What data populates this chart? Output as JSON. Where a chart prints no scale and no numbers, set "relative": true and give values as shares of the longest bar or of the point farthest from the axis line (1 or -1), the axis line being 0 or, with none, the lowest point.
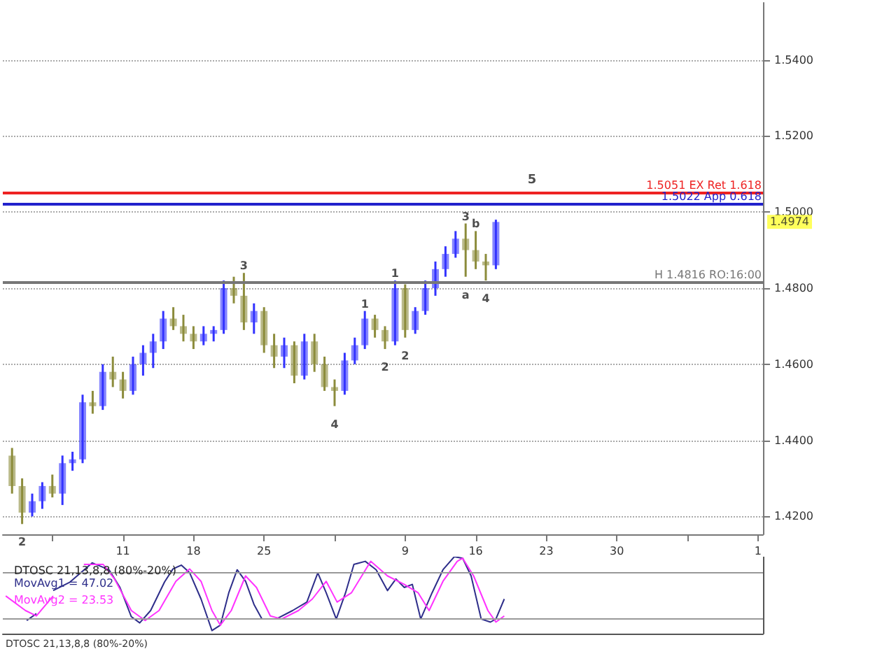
{
  "chart_data": [
    {
      "type": "candlestick",
      "x": [
        "--08-31",
        "--09-01",
        "--09-02",
        "--09-03",
        "--09-04",
        "--09-05",
        "--09-06",
        "--09-07",
        "--09-08",
        "--09-09",
        "--09-10",
        "--09-11",
        "--09-12",
        "--09-13",
        "--09-14",
        "--09-15",
        "--09-16",
        "--09-17",
        "--09-18",
        "--09-19",
        "--09-20",
        "--09-21",
        "--09-22",
        "--09-23",
        "--09-24",
        "--09-25",
        "--09-26",
        "--09-27",
        "--09-28",
        "--09-29",
        "--09-30",
        "--10-01",
        "--10-02",
        "--10-03",
        "--10-04",
        "--10-05",
        "--10-06",
        "--10-07",
        "--10-08",
        "--10-09",
        "--10-10",
        "--10-11",
        "--10-12",
        "--10-13",
        "--10-14",
        "--10-15",
        "--10-16",
        "--10-17",
        "--10-18"
      ],
      "ohlc": [
        [
          1.436,
          1.438,
          1.426,
          1.428
        ],
        [
          1.428,
          1.43,
          1.418,
          1.421
        ],
        [
          1.421,
          1.426,
          1.42,
          1.424
        ],
        [
          1.424,
          1.429,
          1.422,
          1.428
        ],
        [
          1.428,
          1.431,
          1.425,
          1.426
        ],
        [
          1.426,
          1.436,
          1.423,
          1.434
        ],
        [
          1.434,
          1.437,
          1.432,
          1.435
        ],
        [
          1.435,
          1.452,
          1.434,
          1.45
        ],
        [
          1.45,
          1.453,
          1.447,
          1.449
        ],
        [
          1.449,
          1.46,
          1.448,
          1.458
        ],
        [
          1.458,
          1.462,
          1.454,
          1.456
        ],
        [
          1.456,
          1.458,
          1.451,
          1.453
        ],
        [
          1.453,
          1.462,
          1.452,
          1.46
        ],
        [
          1.46,
          1.465,
          1.457,
          1.463
        ],
        [
          1.463,
          1.468,
          1.459,
          1.466
        ],
        [
          1.466,
          1.474,
          1.464,
          1.472
        ],
        [
          1.472,
          1.475,
          1.469,
          1.47
        ],
        [
          1.47,
          1.473,
          1.466,
          1.468
        ],
        [
          1.468,
          1.47,
          1.464,
          1.466
        ],
        [
          1.466,
          1.47,
          1.465,
          1.468
        ],
        [
          1.468,
          1.47,
          1.466,
          1.469
        ],
        [
          1.469,
          1.482,
          1.468,
          1.48
        ],
        [
          1.48,
          1.483,
          1.476,
          1.478
        ],
        [
          1.478,
          1.484,
          1.469,
          1.471
        ],
        [
          1.471,
          1.476,
          1.468,
          1.474
        ],
        [
          1.474,
          1.475,
          1.463,
          1.465
        ],
        [
          1.465,
          1.468,
          1.459,
          1.462
        ],
        [
          1.462,
          1.467,
          1.459,
          1.465
        ],
        [
          1.465,
          1.466,
          1.455,
          1.457
        ],
        [
          1.457,
          1.468,
          1.456,
          1.466
        ],
        [
          1.466,
          1.468,
          1.458,
          1.46
        ],
        [
          1.46,
          1.462,
          1.453,
          1.454
        ],
        [
          1.454,
          1.456,
          1.449,
          1.453
        ],
        [
          1.453,
          1.463,
          1.452,
          1.461
        ],
        [
          1.461,
          1.467,
          1.46,
          1.465
        ],
        [
          1.465,
          1.474,
          1.464,
          1.472
        ],
        [
          1.472,
          1.473,
          1.467,
          1.469
        ],
        [
          1.469,
          1.47,
          1.464,
          1.466
        ],
        [
          1.466,
          1.482,
          1.465,
          1.48
        ],
        [
          1.48,
          1.481,
          1.467,
          1.469
        ],
        [
          1.469,
          1.475,
          1.468,
          1.474
        ],
        [
          1.474,
          1.482,
          1.473,
          1.48
        ],
        [
          1.48,
          1.487,
          1.478,
          1.485
        ],
        [
          1.485,
          1.491,
          1.483,
          1.489
        ],
        [
          1.489,
          1.495,
          1.488,
          1.493
        ],
        [
          1.493,
          1.497,
          1.483,
          1.49
        ],
        [
          1.49,
          1.495,
          1.485,
          1.487
        ],
        [
          1.487,
          1.489,
          1.482,
          1.486
        ],
        [
          1.486,
          1.498,
          1.485,
          1.4974
        ]
      ],
      "colors": [
        "#8c8c3c",
        "#8c8c3c",
        "#3333ff",
        "#3333ff",
        "#8c8c3c",
        "#3333ff",
        "#3333ff",
        "#3333ff",
        "#8c8c3c",
        "#3333ff",
        "#8c8c3c",
        "#8c8c3c",
        "#3333ff",
        "#3333ff",
        "#3333ff",
        "#3333ff",
        "#8c8c3c",
        "#8c8c3c",
        "#8c8c3c",
        "#3333ff",
        "#3333ff",
        "#3333ff",
        "#8c8c3c",
        "#8c8c3c",
        "#3333ff",
        "#8c8c3c",
        "#8c8c3c",
        "#3333ff",
        "#8c8c3c",
        "#3333ff",
        "#8c8c3c",
        "#8c8c3c",
        "#8c8c3c",
        "#3333ff",
        "#3333ff",
        "#3333ff",
        "#8c8c3c",
        "#8c8c3c",
        "#3333ff",
        "#8c8c3c",
        "#3333ff",
        "#3333ff",
        "#3333ff",
        "#3333ff",
        "#3333ff",
        "#8c8c3c",
        "#8c8c3c",
        "#8c8c3c",
        "#3333ff"
      ],
      "xlim": [
        "--08-30T02:00",
        "--11-13T12:00"
      ],
      "xticks": [
        {
          "value": "--09-04",
          "label": null
        },
        {
          "value": "--09-11",
          "label": "11"
        },
        {
          "value": "--09-18",
          "label": "18"
        },
        {
          "value": "--09-25",
          "label": "25"
        },
        {
          "value": "--10-02",
          "label": null
        },
        {
          "value": "--10-09",
          "label": "9"
        },
        {
          "value": "--10-16",
          "label": "16"
        },
        {
          "value": "--10-23",
          "label": "23"
        },
        {
          "value": "--10-30",
          "label": "30"
        },
        {
          "value": "--11-06",
          "label": null
        },
        {
          "value": "--11-13",
          "label": "1"
        }
      ],
      "ylim": [
        1.4153,
        1.555
      ],
      "yticks": [
        {
          "value": 1.42,
          "label": "1.4200"
        },
        {
          "value": 1.44,
          "label": "1.4400"
        },
        {
          "value": 1.46,
          "label": "1.4600"
        },
        {
          "value": 1.48,
          "label": "1.4800"
        },
        {
          "value": 1.5,
          "label": "1.5000"
        },
        {
          "value": 1.52,
          "label": "1.5200"
        },
        {
          "value": 1.54,
          "label": "1.5400"
        }
      ],
      "grid": "y",
      "ref_lines": [
        {
          "axis": "y",
          "value": 1.5051,
          "label": "1.5051 EX Ret 1.618",
          "color": "#ee2222"
        },
        {
          "axis": "y",
          "value": 1.5022,
          "label": "1.5022 App 0.618",
          "color": "#2222cc"
        },
        {
          "axis": "y",
          "value": 1.4816,
          "label": "H 1.4816 RO:16:00",
          "color": "#777777"
        }
      ],
      "annotations": [
        {
          "text": "2",
          "x": "--09-01",
          "y": 1.418
        },
        {
          "text": "3",
          "x": "--09-23",
          "y": 1.484
        },
        {
          "text": "4",
          "x": "--10-02",
          "y": 1.449
        },
        {
          "text": "1",
          "x": "--10-05",
          "y": 1.474
        },
        {
          "text": "2",
          "x": "--10-07",
          "y": 1.464
        },
        {
          "text": "1",
          "x": "--10-08",
          "y": 1.482
        },
        {
          "text": "2",
          "x": "--10-09",
          "y": 1.467
        },
        {
          "text": "3",
          "x": "--10-15",
          "y": 1.497
        },
        {
          "text": "a",
          "x": "--10-15",
          "y": 1.483
        },
        {
          "text": "b",
          "x": "--10-16",
          "y": 1.495
        },
        {
          "text": "4",
          "x": "--10-17",
          "y": 1.482
        },
        {
          "text": "5",
          "x": "--10-21T14:00",
          "y": 1.5051
        },
        "1.4974"
      ]
    },
    {
      "type": "line",
      "title": "DTOSC 21,13,8,8 (80%-20%)",
      "relative": true,
      "series": [
        {
          "name": "MovAvg1 = 47.02",
          "color": "#2e2e8a",
          "x": [
            "--09-01T11:00",
            "--09-02T10:00",
            "--09-03T06:00",
            "--09-04T02:00",
            "--09-05T18:00",
            "--09-07T23:00",
            "--09-09T15:00",
            "--09-10T17:00",
            "--09-11T20:00",
            "--09-12T16:00",
            "--09-13T18:00",
            "--09-15T03:00",
            "--09-15T23:00",
            "--09-16T19:00",
            "--09-17T15:00",
            "--09-18T18:00",
            "--09-19T20:00",
            "--09-20T16:00",
            "--09-21T12:00",
            "--09-22T08:00",
            "--09-23T04:00",
            "--09-24T00:00",
            "--09-24T19:00",
            "--09-26T05:00",
            "--09-27T20:00",
            "--09-29T06:00",
            "--09-30T08:00",
            "--10-01T04:00",
            "--10-02T04:00",
            "--10-03T02:00",
            "--10-03T22:00",
            "--10-05T01:00",
            "--10-06T03:00",
            "--10-07T06:00",
            "--10-08T02:00",
            "--10-08T22:00",
            "--10-09T17:00",
            "--10-10T13:00",
            "--10-11T16:00",
            "--10-12T18:00",
            "--10-13T21:00",
            "--10-14T17:00",
            "--10-15T13:00",
            "--10-16T13:00",
            "--10-17T11:00",
            "--10-18T00:00",
            "--10-18T20:00"
          ],
          "values": [
            0.17,
            0.26,
            null,
            0.56,
            0.67,
            0.92,
            0.83,
            0.6,
            0.22,
            0.14,
            0.3,
            0.67,
            0.84,
            0.89,
            0.79,
            0.45,
            0.04,
            0.11,
            0.53,
            0.83,
            0.68,
            0.38,
            0.19,
            0.19,
            0.3,
            0.41,
            0.79,
            0.53,
            0.19,
            0.53,
            0.9,
            0.94,
            0.83,
            0.56,
            0.71,
            0.6,
            0.64,
            0.19,
            0.53,
            0.83,
            1.0,
            0.98,
            0.75,
            0.19,
            0.15,
            0.19,
            0.45
          ]
        },
        {
          "name": "MovAvg2 = 23.53",
          "color": "#ff33ff",
          "x": [
            "--08-30T09:00",
            "--09-01T08:00",
            "--09-02T10:00",
            "--09-04T02:00",
            "--09-05T18:00",
            "--09-07T03:00",
            "--09-09T01:00",
            "--09-10T04:00",
            "--09-11T20:00",
            "--09-13T05:00",
            "--09-14T14:00",
            "--09-16T06:00",
            "--09-17T15:00",
            "--09-18T18:00",
            "--09-19T20:00",
            "--09-20T16:00",
            "--09-21T18:00",
            "--09-23T04:00",
            "--09-24T06:00",
            "--09-25T15:00",
            "--09-26T18:00",
            "--09-28T10:00",
            "--09-29T19:00",
            "--10-01T04:00",
            "--10-02T06:00",
            "--10-03T16:00",
            "--10-05T14:00",
            "--10-07T06:00",
            "--10-08T22:00",
            "--10-10T07:00",
            "--10-11T09:00",
            "--10-12T18:00",
            "--10-14T04:00",
            "--10-14T17:00",
            "--10-15T19:00",
            "--10-17T05:00",
            "--10-18T00:00",
            "--10-18T20:00"
          ],
          "values": [
            0.49,
            0.3,
            0.23,
            0.49,
            null,
            0.9,
            0.9,
            0.71,
            0.3,
            0.17,
            0.3,
            0.68,
            0.84,
            0.68,
            0.3,
            0.11,
            0.3,
            0.75,
            0.6,
            0.23,
            0.19,
            0.3,
            0.45,
            0.68,
            0.41,
            0.53,
            0.94,
            0.75,
            0.64,
            0.53,
            0.3,
            0.68,
            0.94,
            0.98,
            0.75,
            0.3,
            0.15,
            0.23
          ]
        }
      ],
      "xlim": [
        "--08-30T02:00",
        "--11-13T12:00"
      ],
      "ref_lines": [
        {
          "axis": "y",
          "value": 0.8,
          "color": "#999999"
        },
        {
          "axis": "y",
          "value": 0.2,
          "color": "#999999"
        }
      ],
      "legend": "top left",
      "annotations": [
        "DTOSC 21,13,8,8 (80%-20%)"
      ]
    }
  ]
}
